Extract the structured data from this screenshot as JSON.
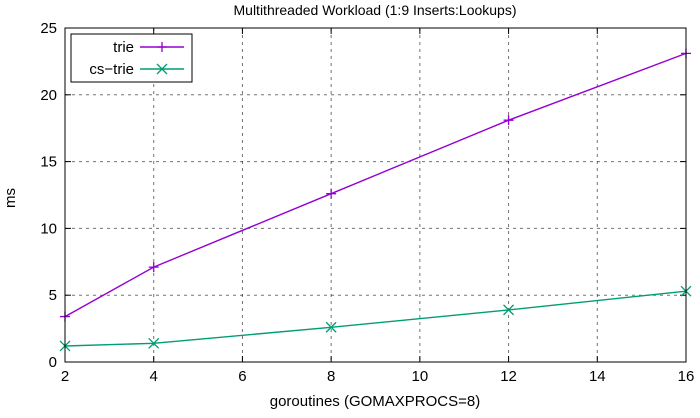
{
  "chart_data": {
    "type": "line",
    "title": "Multithreaded Workload (1:9 Inserts:Lookups)",
    "xlabel": "goroutines (GOMAXPROCS=8)",
    "ylabel": "ms",
    "xlim": [
      2,
      16
    ],
    "ylim": [
      0,
      25
    ],
    "xticks": [
      "2",
      "4",
      "6",
      "8",
      "10",
      "12",
      "14",
      "16"
    ],
    "yticks": [
      "0",
      "5",
      "10",
      "15",
      "20",
      "25"
    ],
    "grid": true,
    "legend_position": "top-left",
    "series": [
      {
        "name": "trie",
        "color": "#9400d3",
        "marker": "plus",
        "x": [
          2,
          4,
          8,
          12,
          16
        ],
        "y": [
          3.4,
          7.1,
          12.6,
          18.1,
          23.1
        ]
      },
      {
        "name": "cs−trie",
        "color": "#009e73",
        "marker": "x",
        "x": [
          2,
          4,
          8,
          12,
          16
        ],
        "y": [
          1.2,
          1.4,
          2.6,
          3.9,
          5.3
        ]
      }
    ]
  }
}
